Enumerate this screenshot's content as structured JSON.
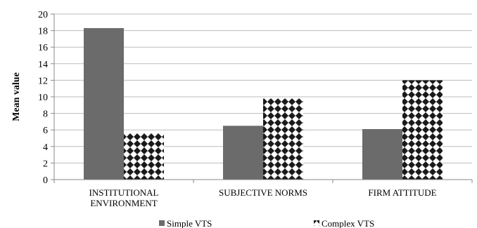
{
  "chart_data": {
    "type": "bar",
    "categories": [
      "INSTITUTIONAL ENVIRONMENT",
      "SUBJECTIVE NORMS",
      "FIRM ATTITUDE"
    ],
    "category_lines": [
      [
        "INSTITUTIONAL",
        "ENVIRONMENT"
      ],
      [
        "SUBJECTIVE NORMS"
      ],
      [
        "FIRM ATTITUDE"
      ]
    ],
    "series": [
      {
        "name": "Simple VTS",
        "values": [
          18.3,
          6.5,
          6.1
        ],
        "fill": "solid",
        "color": "#6b6b6b"
      },
      {
        "name": "Complex VTS",
        "values": [
          5.6,
          9.8,
          12.0
        ],
        "fill": "diamond-pattern",
        "color": "#000000"
      }
    ],
    "title": "",
    "xlabel": "",
    "ylabel": "Mean value",
    "ylim": [
      0,
      20
    ],
    "yticks": [
      0,
      2,
      4,
      6,
      8,
      10,
      12,
      14,
      16,
      18,
      20
    ],
    "grid": true,
    "legend_position": "bottom"
  }
}
